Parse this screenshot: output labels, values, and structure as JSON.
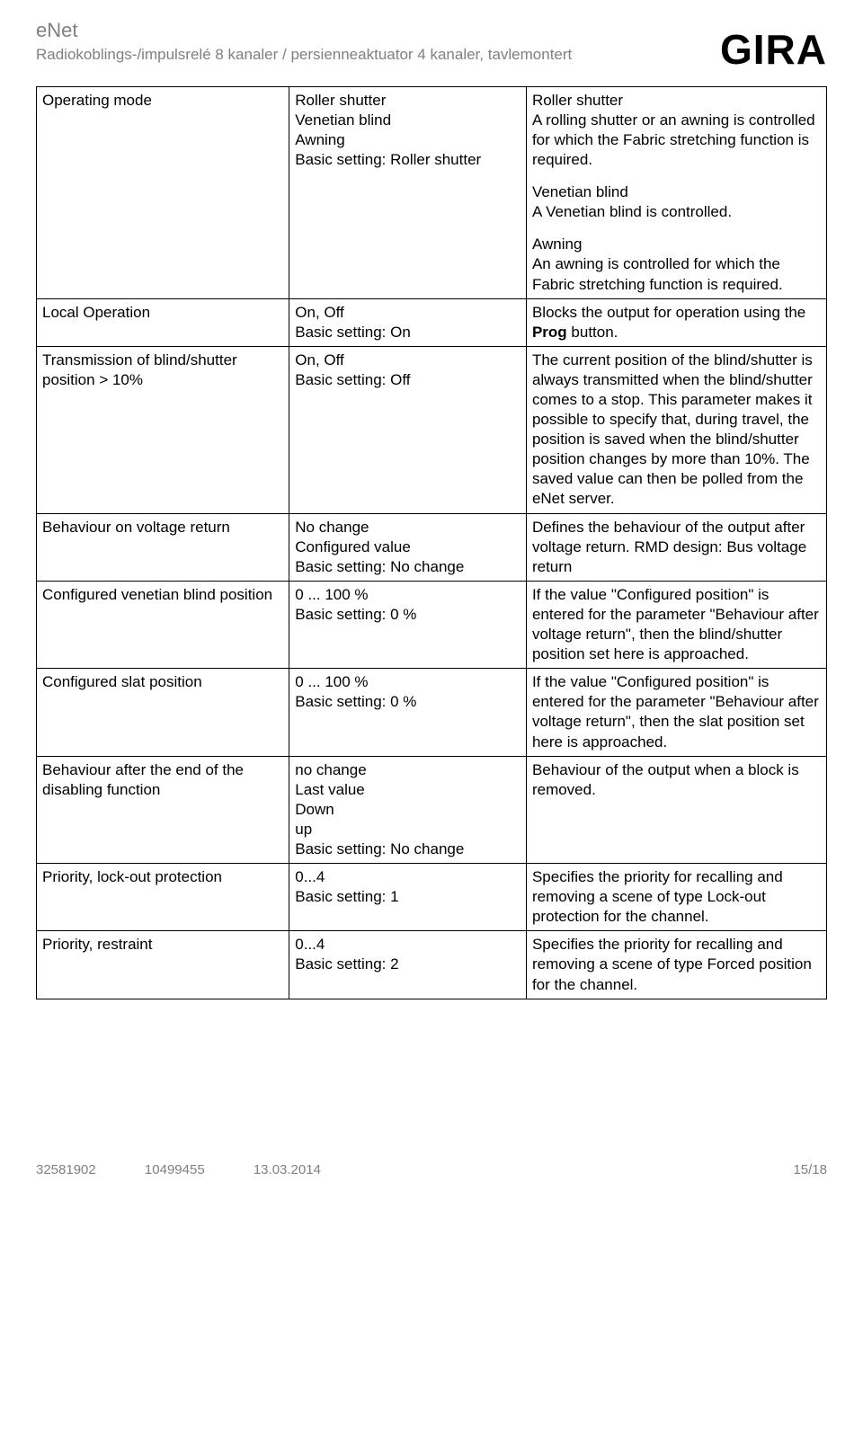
{
  "header": {
    "enet": "eNet",
    "subtitle": "Radiokoblings-/impulsrelé 8 kanaler / persienneaktuator 4 kanaler, tavlemontert",
    "logo": "GIRA"
  },
  "rows": [
    {
      "param": "Operating mode",
      "vals": [
        "Roller shutter",
        "Venetian blind",
        "Awning",
        "Basic setting: Roller shutter"
      ],
      "descs": [
        {
          "title": "Roller shutter",
          "body": "A rolling shutter or an awning is controlled for which the Fabric stretching function is required."
        },
        {
          "title": "Venetian blind",
          "body": "A Venetian blind is controlled."
        },
        {
          "title": "Awning",
          "body": "An awning is controlled for which the Fabric stretching function is required."
        }
      ]
    },
    {
      "param": "Local Operation",
      "vals": [
        "On, Off",
        "Basic setting: On"
      ],
      "desc_html": "Blocks the output for operation using the <b>Prog</b> button."
    },
    {
      "param": "Transmission of blind/shutter position > 10%",
      "vals": [
        "On, Off",
        "Basic setting: Off"
      ],
      "desc": "The current position of the blind/shutter is always transmitted when the blind/shutter comes to a stop. This parameter makes it possible to specify that, during travel, the position is saved when the blind/shutter position changes by more than 10%. The saved value can then be polled from the eNet server."
    },
    {
      "param": "Behaviour on voltage return",
      "vals": [
        "No change",
        "Configured value",
        "Basic setting: No change"
      ],
      "desc": "Defines the behaviour of the output after voltage return. RMD design: Bus voltage return"
    },
    {
      "param": "Configured venetian blind position",
      "vals": [
        "0 ... 100 %",
        "Basic setting: 0 %"
      ],
      "desc": "If the value \"Configured position\" is entered for the parameter \"Behaviour after voltage return\", then the blind/shutter position set here is approached."
    },
    {
      "param": "Configured slat position",
      "vals": [
        "0 ... 100 %",
        "Basic setting: 0 %"
      ],
      "desc": "If the value \"Configured position\" is entered for the parameter \"Behaviour after voltage return\", then the slat position set here is approached."
    },
    {
      "param": "Behaviour after the end of the disabling function",
      "vals": [
        "no change",
        "Last value",
        "Down",
        "up",
        "Basic setting: No change"
      ],
      "desc": "Behaviour of the output when a block is removed."
    },
    {
      "param": "Priority, lock-out protection",
      "vals": [
        "0...4",
        "Basic setting: 1"
      ],
      "desc": "Specifies the priority for recalling and removing a scene of type Lock-out protection for the channel."
    },
    {
      "param": "Priority, restraint",
      "vals": [
        "0...4",
        "Basic setting: 2"
      ],
      "desc": "Specifies the priority for recalling and removing a scene of type Forced position for the channel."
    }
  ],
  "footer": {
    "c1": "32581902",
    "c2": "10499455",
    "c3": "13.03.2014",
    "page": "15/18"
  }
}
